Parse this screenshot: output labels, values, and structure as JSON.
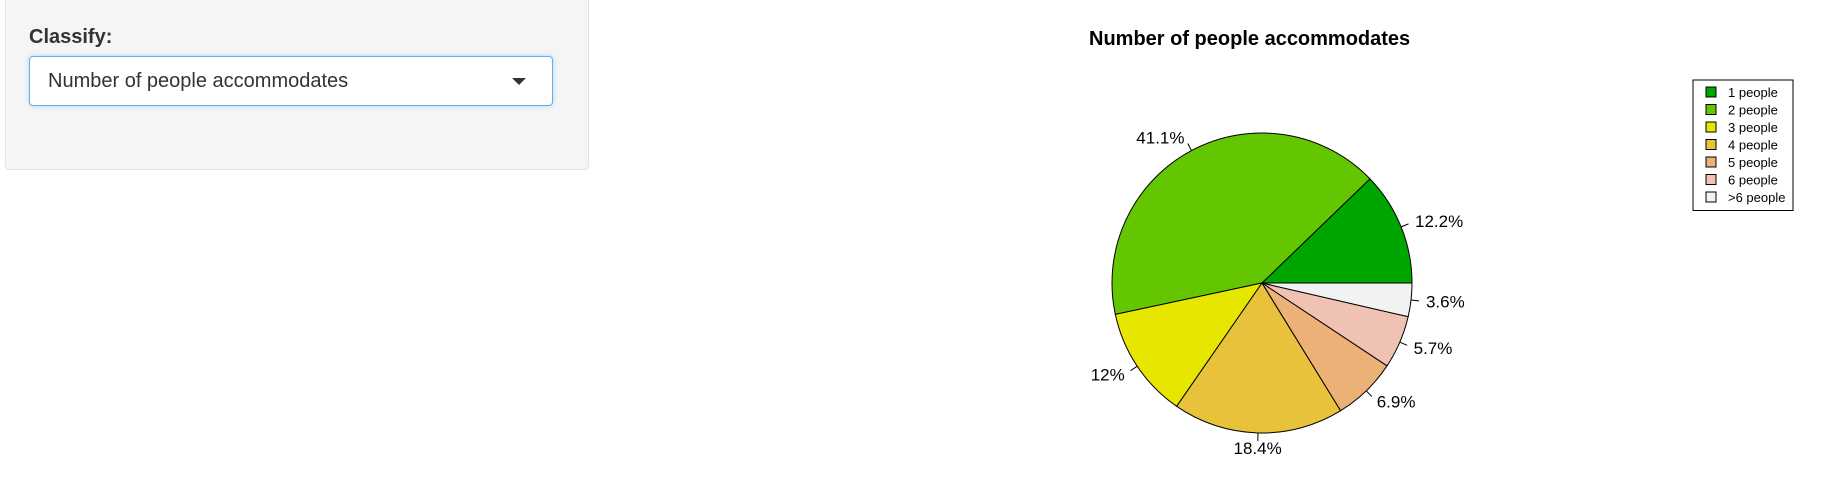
{
  "sidebar": {
    "classify_label": "Classify:",
    "select": {
      "selected": "Number of people accommodates"
    }
  },
  "chart_data": {
    "type": "pie",
    "title": "Number of people accommodates",
    "legend_position": "top-right",
    "start_angle_deg": 0,
    "direction": "counterclockwise",
    "slices": [
      {
        "label": "1 people",
        "value": 12.2,
        "pct_label": "12.2%",
        "color": "#00a600"
      },
      {
        "label": "2 people",
        "value": 41.1,
        "pct_label": "41.1%",
        "color": "#63c600"
      },
      {
        "label": "3 people",
        "value": 12.0,
        "pct_label": "12%",
        "color": "#e6e600"
      },
      {
        "label": "4 people",
        "value": 18.4,
        "pct_label": "18.4%",
        "color": "#e8c23a"
      },
      {
        "label": "5 people",
        "value": 6.9,
        "pct_label": "6.9%",
        "color": "#ecb176"
      },
      {
        "label": "6 people",
        "value": 5.7,
        "pct_label": "5.7%",
        "color": "#efc2b3"
      },
      {
        "label": ">6 people",
        "value": 3.6,
        "pct_label": "3.6%",
        "color": "#f2f2f2"
      }
    ]
  }
}
